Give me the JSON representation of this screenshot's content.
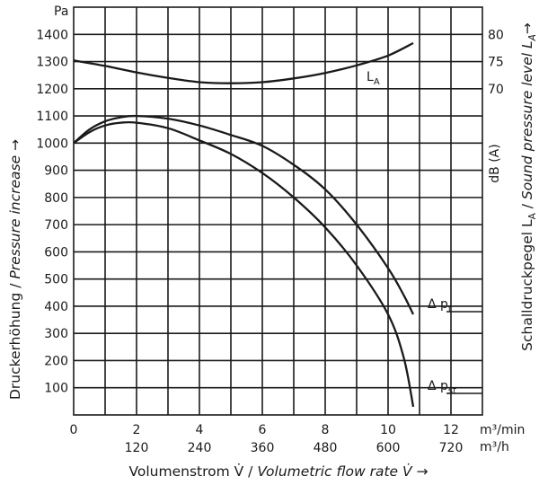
{
  "chart_data": {
    "type": "line",
    "left_axis": {
      "unit": "Pa",
      "ticks": [
        100,
        200,
        300,
        400,
        500,
        600,
        700,
        800,
        900,
        1000,
        1100,
        1200,
        1300,
        1400
      ],
      "range": [
        0,
        1500
      ],
      "title_de": "Druckerhöhung",
      "title_sep": " / ",
      "title_en": "Pressure increase",
      "title_arrow": " →"
    },
    "right_axis": {
      "unit": "dB (A)",
      "ticks": [
        {
          "value": 70,
          "at": 1200
        },
        {
          "value": 75,
          "at": 1300
        },
        {
          "value": 80,
          "at": 1400
        }
      ],
      "title_de": "Schalldruckpegel L",
      "title_de_sub": "A",
      "title_sep": " / ",
      "title_en": "Sound pressure level L",
      "title_en_sub": "A",
      "title_arrow": "→"
    },
    "x_axis": {
      "ticks_m3min": [
        0,
        2,
        4,
        6,
        8,
        10,
        12
      ],
      "ticks_m3h": [
        {
          "label": "120",
          "at": 2
        },
        {
          "label": "240",
          "at": 4
        },
        {
          "label": "360",
          "at": 6
        },
        {
          "label": "480",
          "at": 8
        },
        {
          "label": "600",
          "at": 10
        },
        {
          "label": "720",
          "at": 12
        }
      ],
      "range": [
        0,
        13
      ],
      "unit_m3min": "m³/min",
      "unit_m3h": "m³/h",
      "title_de": "Volumenstrom V̇",
      "title_sep": " / ",
      "title_en": "Volumetric flow rate V̇",
      "title_arrow": "  →"
    },
    "series": [
      {
        "name": "L",
        "name_sub": "A",
        "axis": "right",
        "x": [
          0,
          1,
          2,
          3,
          4,
          5,
          6,
          7,
          8,
          9,
          10,
          10.8
        ],
        "y": [
          75.2,
          74.2,
          73.0,
          72.0,
          71.2,
          71.0,
          71.2,
          71.9,
          72.9,
          74.3,
          76.1,
          78.4
        ]
      },
      {
        "name": "Δ p",
        "name_sub": "t",
        "axis": "left",
        "x": [
          0,
          0.5,
          1,
          1.5,
          2,
          3,
          4,
          5,
          6,
          7,
          8,
          9,
          10,
          10.5,
          10.8
        ],
        "y": [
          1000,
          1050,
          1080,
          1095,
          1100,
          1090,
          1065,
          1030,
          990,
          920,
          830,
          700,
          540,
          440,
          370
        ]
      },
      {
        "name": "Δ p",
        "name_sub": "st",
        "axis": "left",
        "x": [
          0,
          0.5,
          1,
          1.5,
          2,
          3,
          4,
          5,
          6,
          7,
          8,
          9,
          10,
          10.5,
          10.8
        ],
        "y": [
          1000,
          1040,
          1065,
          1075,
          1075,
          1055,
          1010,
          960,
          890,
          800,
          690,
          550,
          370,
          210,
          30
        ]
      }
    ]
  }
}
